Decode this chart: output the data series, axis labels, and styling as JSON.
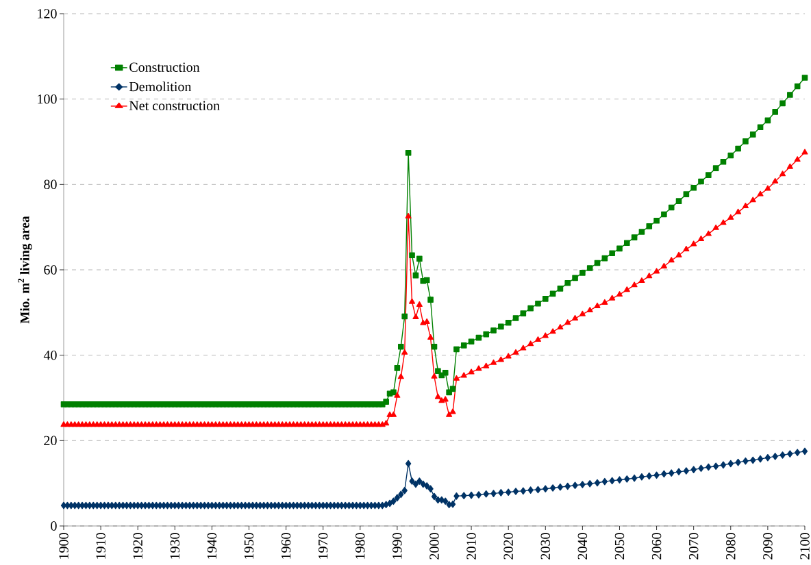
{
  "chart_data": {
    "type": "line",
    "ylabel": "Mio. m$^{2}$ living area",
    "x": [
      1900,
      1901,
      1902,
      1903,
      1904,
      1905,
      1906,
      1907,
      1908,
      1909,
      1910,
      1911,
      1912,
      1913,
      1914,
      1915,
      1916,
      1917,
      1918,
      1919,
      1920,
      1921,
      1922,
      1923,
      1924,
      1925,
      1926,
      1927,
      1928,
      1929,
      1930,
      1931,
      1932,
      1933,
      1934,
      1935,
      1936,
      1937,
      1938,
      1939,
      1940,
      1941,
      1942,
      1943,
      1944,
      1945,
      1946,
      1947,
      1948,
      1949,
      1950,
      1951,
      1952,
      1953,
      1954,
      1955,
      1956,
      1957,
      1958,
      1959,
      1960,
      1961,
      1962,
      1963,
      1964,
      1965,
      1966,
      1967,
      1968,
      1969,
      1970,
      1971,
      1972,
      1973,
      1974,
      1975,
      1976,
      1977,
      1978,
      1979,
      1980,
      1981,
      1982,
      1983,
      1984,
      1985,
      1986,
      1987,
      1988,
      1989,
      1990,
      1991,
      1992,
      1993,
      1994,
      1995,
      1996,
      1997,
      1998,
      1999,
      2000,
      2001,
      2002,
      2003,
      2004,
      2005,
      2006,
      2008,
      2010,
      2012,
      2014,
      2016,
      2018,
      2020,
      2022,
      2024,
      2026,
      2028,
      2030,
      2032,
      2034,
      2036,
      2038,
      2040,
      2042,
      2044,
      2046,
      2048,
      2050,
      2052,
      2054,
      2056,
      2058,
      2060,
      2062,
      2064,
      2066,
      2068,
      2070,
      2072,
      2074,
      2076,
      2078,
      2080,
      2082,
      2084,
      2086,
      2088,
      2090,
      2092,
      2094,
      2096,
      2098,
      2100
    ],
    "series": [
      {
        "name": "Construction",
        "color": "#008000",
        "marker": "square",
        "values": [
          28.5,
          28.5,
          28.5,
          28.5,
          28.5,
          28.5,
          28.5,
          28.5,
          28.5,
          28.5,
          28.5,
          28.5,
          28.5,
          28.5,
          28.5,
          28.5,
          28.5,
          28.5,
          28.5,
          28.5,
          28.5,
          28.5,
          28.5,
          28.5,
          28.5,
          28.5,
          28.5,
          28.5,
          28.5,
          28.5,
          28.5,
          28.5,
          28.5,
          28.5,
          28.5,
          28.5,
          28.5,
          28.5,
          28.5,
          28.5,
          28.5,
          28.5,
          28.5,
          28.5,
          28.5,
          28.5,
          28.5,
          28.5,
          28.5,
          28.5,
          28.5,
          28.5,
          28.5,
          28.5,
          28.5,
          28.5,
          28.5,
          28.5,
          28.5,
          28.5,
          28.5,
          28.5,
          28.5,
          28.5,
          28.5,
          28.5,
          28.5,
          28.5,
          28.5,
          28.5,
          28.5,
          28.5,
          28.5,
          28.5,
          28.5,
          28.5,
          28.5,
          28.5,
          28.5,
          28.5,
          28.5,
          28.5,
          28.5,
          28.5,
          28.5,
          28.5,
          28.5,
          29.1,
          31.0,
          31.3,
          37.0,
          42.0,
          49.1,
          87.4,
          63.4,
          58.7,
          62.6,
          57.4,
          57.6,
          53.0,
          42.0,
          36.3,
          35.3,
          35.9,
          31.3,
          32.1,
          41.4,
          42.3,
          43.2,
          44.1,
          44.9,
          45.8,
          46.7,
          47.6,
          48.7,
          49.8,
          51.0,
          52.1,
          53.2,
          54.4,
          55.6,
          56.9,
          58.1,
          59.3,
          60.4,
          61.6,
          62.7,
          63.9,
          65.0,
          66.3,
          67.6,
          68.9,
          70.2,
          71.5,
          73.0,
          74.6,
          76.1,
          77.7,
          79.2,
          80.7,
          82.2,
          83.8,
          85.3,
          86.8,
          88.4,
          90.1,
          91.7,
          93.4,
          95.0,
          97.0,
          99.0,
          101.0,
          103.0,
          105.0
        ]
      },
      {
        "name": "Demolition",
        "color": "#003366",
        "marker": "diamond",
        "values": [
          4.8,
          4.8,
          4.8,
          4.8,
          4.8,
          4.8,
          4.8,
          4.8,
          4.8,
          4.8,
          4.8,
          4.8,
          4.8,
          4.8,
          4.8,
          4.8,
          4.8,
          4.8,
          4.8,
          4.8,
          4.8,
          4.8,
          4.8,
          4.8,
          4.8,
          4.8,
          4.8,
          4.8,
          4.8,
          4.8,
          4.8,
          4.8,
          4.8,
          4.8,
          4.8,
          4.8,
          4.8,
          4.8,
          4.8,
          4.8,
          4.8,
          4.8,
          4.8,
          4.8,
          4.8,
          4.8,
          4.8,
          4.8,
          4.8,
          4.8,
          4.8,
          4.8,
          4.8,
          4.8,
          4.8,
          4.8,
          4.8,
          4.8,
          4.8,
          4.8,
          4.8,
          4.8,
          4.8,
          4.8,
          4.8,
          4.8,
          4.8,
          4.8,
          4.8,
          4.8,
          4.8,
          4.8,
          4.8,
          4.8,
          4.8,
          4.8,
          4.8,
          4.8,
          4.8,
          4.8,
          4.8,
          4.8,
          4.8,
          4.8,
          4.8,
          4.8,
          4.8,
          5.0,
          5.3,
          5.8,
          6.6,
          7.4,
          8.3,
          14.6,
          10.5,
          9.8,
          10.5,
          9.8,
          9.4,
          8.7,
          6.9,
          6.1,
          6.1,
          5.8,
          5.0,
          5.1,
          7.0,
          7.1,
          7.2,
          7.3,
          7.5,
          7.6,
          7.8,
          7.9,
          8.1,
          8.2,
          8.4,
          8.5,
          8.7,
          8.9,
          9.1,
          9.3,
          9.5,
          9.7,
          9.9,
          10.1,
          10.4,
          10.6,
          10.8,
          11.0,
          11.2,
          11.5,
          11.7,
          11.9,
          12.2,
          12.4,
          12.7,
          12.9,
          13.2,
          13.5,
          13.8,
          14.0,
          14.3,
          14.6,
          14.9,
          15.2,
          15.4,
          15.7,
          16.0,
          16.3,
          16.6,
          16.9,
          17.2,
          17.5
        ]
      },
      {
        "name": "Net construction",
        "color": "#ff0000",
        "marker": "triangle",
        "values": [
          23.7,
          23.7,
          23.7,
          23.7,
          23.7,
          23.7,
          23.7,
          23.7,
          23.7,
          23.7,
          23.7,
          23.7,
          23.7,
          23.7,
          23.7,
          23.7,
          23.7,
          23.7,
          23.7,
          23.7,
          23.7,
          23.7,
          23.7,
          23.7,
          23.7,
          23.7,
          23.7,
          23.7,
          23.7,
          23.7,
          23.7,
          23.7,
          23.7,
          23.7,
          23.7,
          23.7,
          23.7,
          23.7,
          23.7,
          23.7,
          23.7,
          23.7,
          23.7,
          23.7,
          23.7,
          23.7,
          23.7,
          23.7,
          23.7,
          23.7,
          23.7,
          23.7,
          23.7,
          23.7,
          23.7,
          23.7,
          23.7,
          23.7,
          23.7,
          23.7,
          23.7,
          23.7,
          23.7,
          23.7,
          23.7,
          23.7,
          23.7,
          23.7,
          23.7,
          23.7,
          23.7,
          23.7,
          23.7,
          23.7,
          23.7,
          23.7,
          23.7,
          23.7,
          23.7,
          23.7,
          23.7,
          23.7,
          23.7,
          23.7,
          23.7,
          23.7,
          23.7,
          24.0,
          26.0,
          26.0,
          30.5,
          34.9,
          40.6,
          72.5,
          52.5,
          48.9,
          51.8,
          47.5,
          47.8,
          44.1,
          35.0,
          30.2,
          29.3,
          29.6,
          26.0,
          26.7,
          34.5,
          35.2,
          36.0,
          36.8,
          37.4,
          38.2,
          38.9,
          39.7,
          40.6,
          41.6,
          42.6,
          43.6,
          44.5,
          45.5,
          46.5,
          47.6,
          48.6,
          49.6,
          50.5,
          51.5,
          52.3,
          53.3,
          54.2,
          55.3,
          56.4,
          57.4,
          58.5,
          59.6,
          60.8,
          62.2,
          63.4,
          64.8,
          66.0,
          67.2,
          68.4,
          69.8,
          71.0,
          72.2,
          73.5,
          74.9,
          76.3,
          77.7,
          79.0,
          80.7,
          82.4,
          84.1,
          85.8,
          87.5
        ]
      }
    ],
    "xlim": [
      1900,
      2100
    ],
    "xticks": [
      1900,
      1910,
      1920,
      1930,
      1940,
      1950,
      1960,
      1970,
      1980,
      1990,
      2000,
      2010,
      2020,
      2030,
      2040,
      2050,
      2060,
      2070,
      2080,
      2090,
      2100
    ],
    "ylim": [
      0,
      120
    ],
    "yticks": [
      0,
      20,
      40,
      60,
      80,
      100,
      120
    ],
    "grid": "y",
    "legend": "top left",
    "line_style": "solid"
  }
}
